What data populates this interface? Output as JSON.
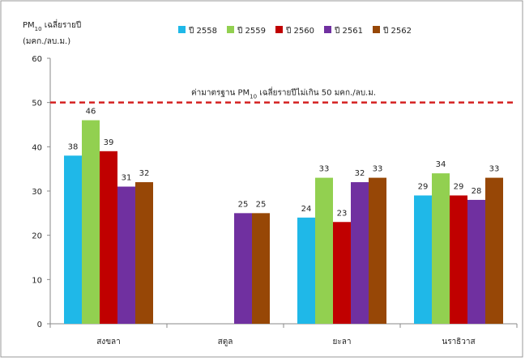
{
  "chart_data": {
    "type": "bar",
    "y_label_parts": [
      "PM",
      "10",
      " เฉลี่ยรายปี"
    ],
    "y_unit": "(มคก./ลบ.ม.)",
    "categories": [
      "สงขลา",
      "สตูล",
      "ยะลา",
      "นราธิวาส"
    ],
    "series": [
      {
        "name": "ปี 2558",
        "color": "#1fb8e8",
        "values": [
          38,
          null,
          24,
          29
        ]
      },
      {
        "name": "ปี 2559",
        "color": "#92d050",
        "values": [
          46,
          null,
          33,
          34
        ]
      },
      {
        "name": "ปี 2560",
        "color": "#c00000",
        "values": [
          39,
          null,
          23,
          29
        ]
      },
      {
        "name": "ปี 2561",
        "color": "#7030a0",
        "values": [
          31,
          25,
          32,
          28
        ]
      },
      {
        "name": "ปี 2562",
        "color": "#974706",
        "values": [
          32,
          25,
          33,
          33
        ]
      }
    ],
    "ylim": [
      0,
      60
    ],
    "yticks": [
      0,
      10,
      20,
      30,
      40,
      50,
      60
    ],
    "reference_line": {
      "value": 50,
      "color": "#d42020",
      "label_parts": [
        "ค่ามาตรฐาน PM",
        "10",
        " เฉลี่ยรายปีไม่เกิน 50 มคก./ลบ.ม."
      ]
    },
    "legend": "top",
    "grid": false
  }
}
